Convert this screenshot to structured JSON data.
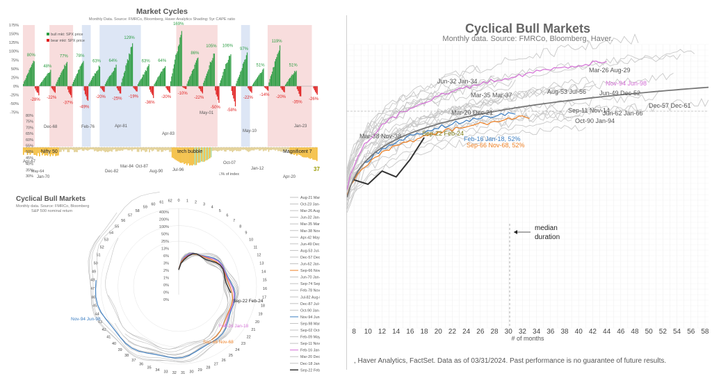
{
  "colors": {
    "bull": "#2e9e44",
    "bear": "#e02020",
    "nifty": "#f2b400",
    "shade_red": "#f3c7c7",
    "shade_blue": "#c6d6ef",
    "median_line": "#777777",
    "current_line": "#333333",
    "orange": "#ee7f22",
    "pink": "#d46fd6",
    "blue": "#3a7dc2",
    "olive_label": "#7a7a14"
  },
  "panel1": {
    "title": "Market Cycles",
    "subtitle": "Monthly Data.  Source: FMRCo, Bloomberg, Haver Analytics  Shading: 5yr CAPE ratio",
    "legend_bull": "bull mkt: SPX price",
    "legend_bear": "bear mkt: SPX price",
    "legend_nifty": "□% of index",
    "upper_axis_labels": [
      "175%",
      "150%",
      "125%",
      "100%",
      "75%",
      "50%",
      "25%",
      "0%",
      "-25%",
      "-50%",
      "-75%"
    ],
    "lower_axis_labels": [
      "80%",
      "75%",
      "70%",
      "65%",
      "60%",
      "55%",
      "50%",
      "45%",
      "40%",
      "35%",
      "30%"
    ],
    "bull_labels": [
      "80%",
      "48%",
      "77%",
      "78%",
      "63%",
      "64%",
      "129%",
      "63%",
      "64%",
      "169%",
      "86%",
      "105%",
      "106%",
      "97%",
      "51%",
      "119%",
      "51%"
    ],
    "bear_labels": [
      "-28%",
      "-22%",
      "-37%",
      "-49%",
      "-20%",
      "-25%",
      "-19%",
      "-36%",
      "-20%",
      "-10%",
      "-22%",
      "-50%",
      "-58%",
      "-22%",
      "-14%",
      "-20%",
      "-35%",
      "-26%"
    ],
    "cycle_labels": [
      "Dec-68",
      "Feb-76",
      "Apr-81",
      "Apr-83",
      "May-01",
      "May-10",
      "Jan-23"
    ],
    "lower_labels": [
      "Apr-67",
      "Jan-70",
      "Dec-82",
      "Mar-84",
      "Oct-87",
      "Aug-90",
      "Jul-96",
      "Oct-07",
      "Jan-12",
      "Apr-20"
    ],
    "lower_left_label": "May-64",
    "era_labels": [
      "Nifty 50",
      "tech bubble",
      "Magnificent 7"
    ],
    "end_value": "37%",
    "cycles": [
      {
        "bull": 80,
        "bear": -28
      },
      {
        "bull": 48,
        "bear": -22
      },
      {
        "bull": 77,
        "bear": -37
      },
      {
        "bull": 78,
        "bear": -49
      },
      {
        "bull": 63,
        "bear": -20
      },
      {
        "bull": 64,
        "bear": -25
      },
      {
        "bull": 129,
        "bear": -19
      },
      {
        "bull": 63,
        "bear": -36
      },
      {
        "bull": 64,
        "bear": -20
      },
      {
        "bull": 169,
        "bear": -10
      },
      {
        "bull": 86,
        "bear": -22
      },
      {
        "bull": 105,
        "bear": -50
      },
      {
        "bull": 106,
        "bear": -58
      },
      {
        "bull": 97,
        "bear": -22
      },
      {
        "bull": 51,
        "bear": -14
      },
      {
        "bull": 119,
        "bear": -20
      },
      {
        "bull": 51,
        "bear": -35
      },
      {
        "bull": 0,
        "bear": -26
      }
    ]
  },
  "panel2": {
    "title": "Cyclical Bull Markets",
    "subtitle": "Monthly data.  Source: FMRCo, Bloomberg",
    "subtitle2": "S&P 500 nominal return",
    "month_ticks": [
      "0",
      "1",
      "2",
      "3",
      "4",
      "5",
      "6",
      "7",
      "8",
      "9",
      "10",
      "11",
      "12",
      "13",
      "14",
      "15",
      "16",
      "17",
      "18",
      "19",
      "20",
      "21",
      "22",
      "23",
      "24",
      "25",
      "26",
      "27",
      "28",
      "29",
      "30",
      "31",
      "32",
      "33",
      "34",
      "35",
      "36",
      "37",
      "38",
      "39",
      "40",
      "41",
      "42",
      "43",
      "44",
      "45",
      "46",
      "47",
      "48",
      "49",
      "50",
      "51",
      "52",
      "53",
      "54",
      "55",
      "56",
      "57",
      "58",
      "59",
      "60",
      "61",
      "62"
    ],
    "radial_ticks": [
      "400%",
      "200%",
      "100%",
      "50%",
      "25%",
      "13%",
      "6%",
      "3%",
      "2%",
      "1%",
      "0%",
      "0%",
      "0%"
    ],
    "callouts": {
      "current": "Sep-22 Feb-24",
      "blue": "Nov-94 Jun-98",
      "pink": "Feb-16 Jan-18",
      "orange": "Sep-66 Nov-68"
    },
    "legend": [
      "Aug-21 Mar-23",
      "Oct-23 Jan-26",
      "Mar-26 Aug-29",
      "Jun-32 Jan-34",
      "Mar-35 Mar-37",
      "Mar-38 Nov-38",
      "Apr-42 May-46",
      "Jun-49 Dec-52",
      "Aug-53 Jul-56",
      "Dec-57 Dec-61",
      "Jun-62 Jan-66",
      "Sep-66 Nov-68",
      "Jun-70 Jan-73",
      "Sep-74 Sep-76",
      "Feb-78 Nov-80",
      "Jul-82 Aug-87",
      "Dec-87 Jul-90",
      "Oct-90 Jan-94",
      "Nov-94 Jun-98",
      "Sep-98 Mar-00",
      "Sep-02 Oct-07",
      "Feb-09 May-11",
      "Sep-11 Nov-14",
      "Feb-16 Jan-18",
      "Mar-20 Dec-21",
      "Dec-18 Jan-20",
      "Sep-22 Feb-24"
    ]
  },
  "panel3": {
    "title": "Cyclical Bull Markets",
    "subtitle": "Monthly data.  Source: FMRCo, Bloomberg, Haver.",
    "xlabel": "# of months",
    "x_ticks": [
      "8",
      "10",
      "12",
      "14",
      "16",
      "18",
      "20",
      "22",
      "24",
      "26",
      "28",
      "30",
      "32",
      "34",
      "36",
      "38",
      "40",
      "42",
      "44",
      "46",
      "48",
      "50",
      "52",
      "54",
      "56",
      "58"
    ],
    "median_note_line1": "median",
    "median_note_line2": "duration",
    "labels": {
      "jun32": "Jun-32 Jan-34",
      "mar26": "Mar-26 Aug-29",
      "nov94": "Nov-94 Jun-98",
      "mar35": "Mar-35 Mar-37",
      "aug53": "Aug-53 Jul-56",
      "jun49": "Jun-49 Dec-52",
      "dec57": "Dec-57 Dec-61",
      "mar20": "Mar-20 Dec-21",
      "sep11": "Sep-11 Nov-14",
      "jun62": "Jun-62 Jan-66",
      "oct90": "Oct-90 Jan-94",
      "sep22": "Sep-22 Feb-24",
      "mar38": "Mar-38 Nov-38",
      "feb16": "Feb-16 Jan-18, 52%",
      "sep66": "Sep-66 Nov-68, 52%"
    },
    "footnote": ", Haver Analytics, FactSet. Data as of 03/31/2024. Past performance is no guarantee of future results."
  },
  "chart_data": [
    {
      "type": "bar",
      "title": "Market Cycles",
      "series": [
        {
          "name": "bull mkt: SPX price",
          "values": [
            80,
            48,
            77,
            78,
            63,
            64,
            129,
            63,
            64,
            169,
            86,
            105,
            106,
            97,
            51,
            119,
            51
          ]
        },
        {
          "name": "bear mkt: SPX price",
          "values": [
            -28,
            -22,
            -37,
            -49,
            -20,
            -25,
            -19,
            -36,
            -20,
            -10,
            -22,
            -50,
            -58,
            -22,
            -14,
            -20,
            -35,
            -26
          ]
        }
      ],
      "ylim": [
        -75,
        175
      ],
      "lower_ylim": [
        30,
        80
      ]
    },
    {
      "type": "line",
      "title": "Cyclical Bull Markets",
      "xlabel": "",
      "ylabel": "S&P 500 nominal return",
      "xlim": [
        0,
        62
      ]
    },
    {
      "type": "line",
      "title": "Cyclical Bull Markets",
      "xlabel": "# of months",
      "xlim": [
        7,
        58
      ],
      "x": [
        8,
        10,
        12,
        14,
        16,
        18
      ],
      "series": [
        {
          "name": "Sep-22 Feb-24",
          "values": [
            12,
            9,
            18,
            14,
            26,
            41
          ]
        }
      ]
    }
  ]
}
